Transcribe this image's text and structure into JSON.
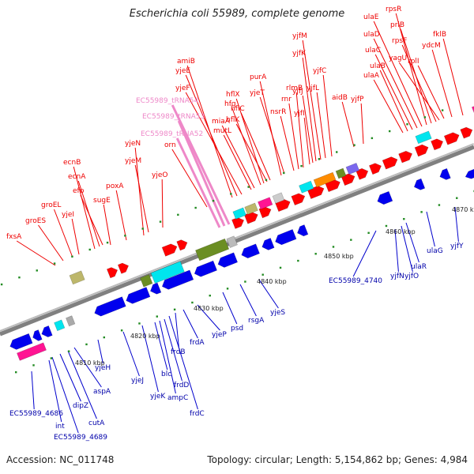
{
  "title": "Escherichia coli 55989, complete genome",
  "footer": {
    "accession": "Accession: NC_011748",
    "stats": "Topology: circular; Length: 5,154,862 bp; Genes: 4,984"
  },
  "ticks": [
    "4810 kbp",
    "4820 kbp",
    "4830 kbp",
    "4840 kbp",
    "4850 kbp",
    "4860 kbp",
    "4870 kbp"
  ],
  "upper_labels": [
    "fxsA",
    "groES",
    "groEL",
    "yjeI",
    "ecnB",
    "ecnA",
    "efp",
    "sugE",
    "poxA",
    "yjeN",
    "yjeM",
    "yjeO",
    "orn",
    "EC55989_tRNA52",
    "EC55989_tRNA53",
    "EC55989_tRNA54",
    "amiB",
    "yjeE",
    "yjeF",
    "mutL",
    "miaA",
    "hfq",
    "hflX",
    "hflK",
    "hflC",
    "purA",
    "yjeT",
    "nsrR",
    "rnr",
    "rlmB",
    "yjfI",
    "yjfJ",
    "yjfK",
    "yjfM",
    "yjfL",
    "yjfC",
    "aidB",
    "yjfP",
    "ulaA",
    "ulaB",
    "ulaC",
    "ulaD",
    "ulaE",
    "rpsR",
    "priB",
    "rpsF",
    "yagU",
    "rplI",
    "ydcM",
    "fklB"
  ],
  "lower_labels": [
    "EC55989_4686",
    "int",
    "EC55989_4689",
    "dipZ",
    "cutA",
    "aspA",
    "yjeH",
    "yjeJ",
    "yjeK",
    "blc",
    "ampC",
    "frdD",
    "frdC",
    "frdB",
    "frdA",
    "yjeP",
    "psd",
    "rsgA",
    "yjeS",
    "EC55989_4740",
    "yjfN",
    "yjfO",
    "ulaR",
    "ulaG",
    "yjfY"
  ],
  "colors": {
    "red_genes": "#ff0000",
    "blue_genes": "#0000ee",
    "trna_label": "#ee88c8",
    "label_line_upper": "#ee0000",
    "label_line_lower": "#0000cc",
    "backbone": "#808080",
    "tick_marks": "#228b22",
    "cyan": "#00e5ee",
    "olive": "#6b8e23",
    "khaki": "#bdb76b",
    "orange": "#ff8c00",
    "purple": "#7b68ee",
    "pink": "#ff1493"
  }
}
